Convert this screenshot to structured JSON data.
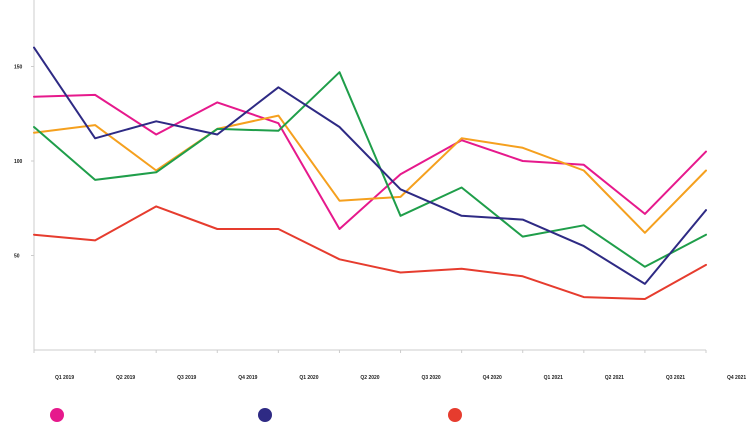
{
  "chart_data": {
    "type": "line",
    "categories": [
      "Q1 2019",
      "Q2 2019",
      "Q3 2019",
      "Q4 2019",
      "Q1 2020",
      "Q2 2020",
      "Q3 2020",
      "Q4 2020",
      "Q1 2021",
      "Q2 2021",
      "Q3 2021",
      "Q4 2021"
    ],
    "ylim": [
      0,
      175
    ],
    "yticks": [
      50,
      100,
      150
    ],
    "grid": false,
    "legend_position": "bottom",
    "series": [
      {
        "color": "#e6198c",
        "values": [
          134,
          135,
          114,
          131,
          120,
          64,
          93,
          111,
          100,
          98,
          72,
          105
        ]
      },
      {
        "color": "#f5a01e",
        "values": [
          115,
          119,
          95,
          117,
          124,
          79,
          81,
          112,
          107,
          95,
          62,
          95
        ]
      },
      {
        "color": "#1f9e4a",
        "values": [
          118,
          90,
          94,
          117,
          116,
          147,
          71,
          86,
          60,
          66,
          44,
          61
        ]
      },
      {
        "color": "#2e2a84",
        "values": [
          160,
          112,
          121,
          114,
          139,
          118,
          85,
          71,
          69,
          55,
          35,
          74
        ]
      },
      {
        "color": "#e63c2e",
        "values": [
          61,
          58,
          76,
          64,
          64,
          48,
          41,
          43,
          39,
          28,
          27,
          45
        ]
      }
    ],
    "axis_color": "#cccccc"
  },
  "legend": [
    {
      "color": "#e6198c",
      "label": ""
    },
    {
      "color": "#2e2a84",
      "label": ""
    },
    {
      "color": "#e63c2e",
      "label": ""
    }
  ]
}
